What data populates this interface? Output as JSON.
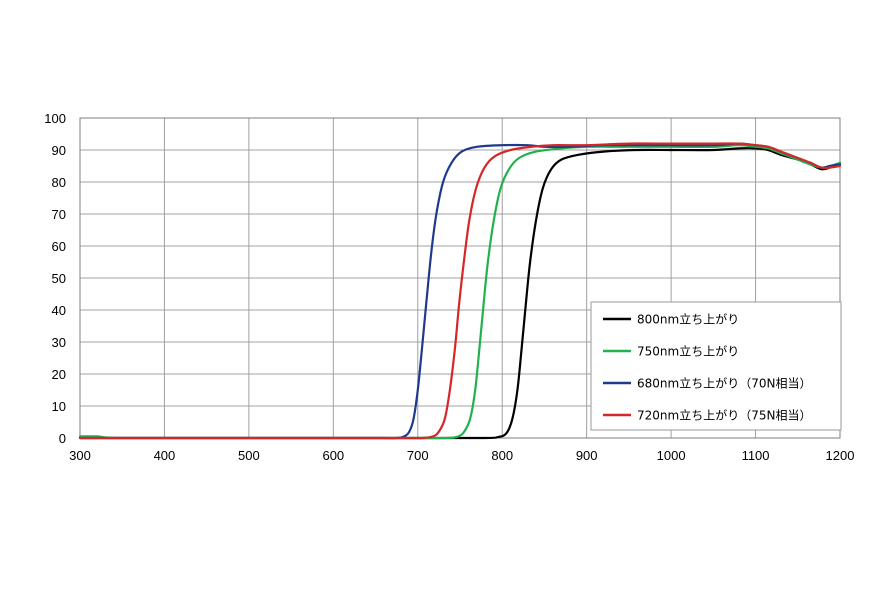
{
  "chart_data": {
    "type": "line",
    "title": "",
    "xlabel": "",
    "ylabel": "",
    "xlim": [
      300,
      1200
    ],
    "ylim": [
      0,
      100
    ],
    "x_ticks": [
      "300",
      "400",
      "500",
      "600",
      "700",
      "800",
      "900",
      "1000",
      "1100",
      "1200"
    ],
    "y_ticks": [
      "0",
      "10",
      "20",
      "30",
      "40",
      "50",
      "60",
      "70",
      "80",
      "90",
      "100"
    ],
    "grid": true,
    "legend_position": "bottom-right",
    "series": [
      {
        "name": "800nm立ち上がり",
        "color": "#000000",
        "points": [
          [
            300,
            0
          ],
          [
            500,
            0
          ],
          [
            700,
            0
          ],
          [
            780,
            0
          ],
          [
            795,
            0.3
          ],
          [
            805,
            1.5
          ],
          [
            812,
            6
          ],
          [
            818,
            15
          ],
          [
            823,
            28
          ],
          [
            828,
            42
          ],
          [
            833,
            55
          ],
          [
            840,
            68
          ],
          [
            848,
            78
          ],
          [
            858,
            84
          ],
          [
            870,
            87
          ],
          [
            890,
            88.5
          ],
          [
            920,
            89.5
          ],
          [
            960,
            90
          ],
          [
            1000,
            90
          ],
          [
            1050,
            90
          ],
          [
            1080,
            90.5
          ],
          [
            1100,
            90.5
          ],
          [
            1115,
            90
          ],
          [
            1130,
            88.5
          ],
          [
            1150,
            87
          ],
          [
            1165,
            85.5
          ],
          [
            1178,
            84
          ],
          [
            1188,
            84.5
          ],
          [
            1200,
            85.5
          ]
        ]
      },
      {
        "name": "750nm立ち上がり",
        "color": "#22b14c",
        "points": [
          [
            300,
            0.5
          ],
          [
            320,
            0.5
          ],
          [
            350,
            0
          ],
          [
            500,
            0
          ],
          [
            700,
            0
          ],
          [
            735,
            0
          ],
          [
            748,
            0.5
          ],
          [
            755,
            2
          ],
          [
            762,
            6
          ],
          [
            768,
            15
          ],
          [
            773,
            28
          ],
          [
            778,
            42
          ],
          [
            783,
            55
          ],
          [
            790,
            68
          ],
          [
            798,
            78
          ],
          [
            808,
            84
          ],
          [
            820,
            87.5
          ],
          [
            840,
            89.5
          ],
          [
            870,
            90.5
          ],
          [
            900,
            91
          ],
          [
            950,
            91
          ],
          [
            1000,
            91
          ],
          [
            1050,
            91
          ],
          [
            1080,
            91.5
          ],
          [
            1100,
            91
          ],
          [
            1115,
            90.5
          ],
          [
            1130,
            89
          ],
          [
            1150,
            87
          ],
          [
            1165,
            85.5
          ],
          [
            1178,
            84.5
          ],
          [
            1188,
            85
          ],
          [
            1200,
            86
          ]
        ]
      },
      {
        "name": "680nm立ち上がり（70N相当）",
        "color": "#1f3a8a",
        "points": [
          [
            300,
            0
          ],
          [
            500,
            0
          ],
          [
            650,
            0
          ],
          [
            675,
            0
          ],
          [
            684,
            0.5
          ],
          [
            690,
            2
          ],
          [
            695,
            6
          ],
          [
            700,
            15
          ],
          [
            705,
            28
          ],
          [
            710,
            42
          ],
          [
            716,
            58
          ],
          [
            722,
            70
          ],
          [
            730,
            80
          ],
          [
            740,
            86
          ],
          [
            752,
            89.5
          ],
          [
            770,
            91
          ],
          [
            800,
            91.5
          ],
          [
            830,
            91.5
          ],
          [
            850,
            91
          ],
          [
            880,
            91
          ],
          [
            920,
            91.5
          ],
          [
            960,
            91.5
          ],
          [
            1000,
            91.5
          ],
          [
            1050,
            91.5
          ],
          [
            1080,
            92
          ],
          [
            1100,
            91.5
          ],
          [
            1115,
            91
          ],
          [
            1130,
            89.5
          ],
          [
            1150,
            87.5
          ],
          [
            1165,
            86
          ],
          [
            1178,
            84.5
          ],
          [
            1188,
            85
          ],
          [
            1200,
            85.5
          ]
        ]
      },
      {
        "name": "720nm立ち上がり（75N相当）",
        "color": "#d62728",
        "points": [
          [
            300,
            0
          ],
          [
            500,
            0
          ],
          [
            680,
            0
          ],
          [
            705,
            0
          ],
          [
            718,
            0.5
          ],
          [
            725,
            2
          ],
          [
            732,
            6
          ],
          [
            738,
            15
          ],
          [
            744,
            28
          ],
          [
            749,
            42
          ],
          [
            755,
            56
          ],
          [
            761,
            68
          ],
          [
            769,
            78
          ],
          [
            779,
            84.5
          ],
          [
            791,
            88
          ],
          [
            810,
            90
          ],
          [
            835,
            91
          ],
          [
            860,
            91.5
          ],
          [
            900,
            91.5
          ],
          [
            950,
            92
          ],
          [
            1000,
            92
          ],
          [
            1050,
            92
          ],
          [
            1080,
            92
          ],
          [
            1100,
            91.5
          ],
          [
            1115,
            91
          ],
          [
            1130,
            89.5
          ],
          [
            1150,
            87.5
          ],
          [
            1165,
            86
          ],
          [
            1178,
            84.5
          ],
          [
            1188,
            84.5
          ],
          [
            1200,
            85
          ]
        ]
      }
    ]
  }
}
